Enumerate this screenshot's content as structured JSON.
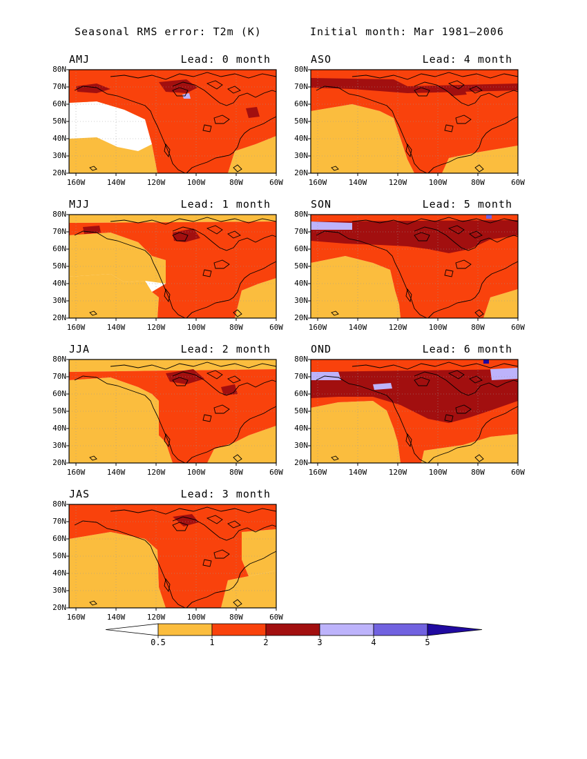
{
  "title": {
    "left": "Seasonal RMS error: T2m (K)",
    "right": "Initial month: Mar 1981–2006"
  },
  "colors": {
    "c05_1": "#fbbd3e",
    "c1_2": "#f9420c",
    "c2_3": "#a20f0f",
    "c3_4": "#bdb3fb",
    "c4_5": "#7162e0",
    "c5p": "#200aa0",
    "land": "#000000"
  },
  "axes": {
    "lat_labels": [
      "80N",
      "70N",
      "60N",
      "50N",
      "40N",
      "30N",
      "20N"
    ],
    "lon_labels": [
      "160W",
      "140W",
      "120W",
      "100W",
      "80W",
      "60W"
    ]
  },
  "panels": [
    {
      "season": "AMJ",
      "lead": "Lead: 0 month"
    },
    {
      "season": "MJJ",
      "lead": "Lead: 1 month"
    },
    {
      "season": "JJA",
      "lead": "Lead: 2 month"
    },
    {
      "season": "JAS",
      "lead": "Lead: 3 month"
    },
    {
      "season": "ASO",
      "lead": "Lead: 4 month"
    },
    {
      "season": "SON",
      "lead": "Lead: 5 month"
    },
    {
      "season": "OND",
      "lead": "Lead: 6 month"
    }
  ],
  "colorbar": {
    "labels": [
      "0.5",
      "1",
      "2",
      "3",
      "4",
      "5"
    ]
  }
}
